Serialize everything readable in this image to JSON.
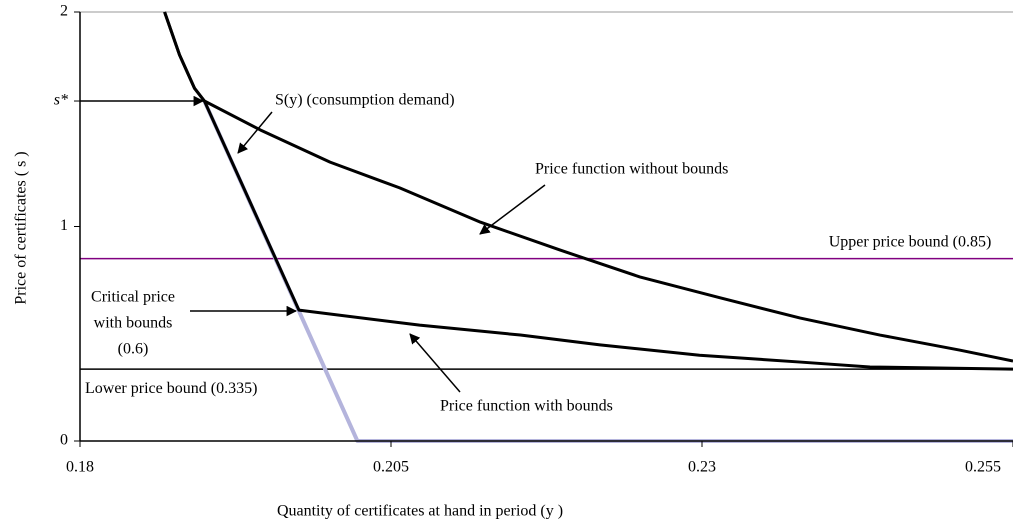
{
  "chart_data": {
    "type": "line",
    "xlabel": "Quantity of certificates at hand in period (y )",
    "ylabel": "Price of certificates ( s )",
    "xlim": [
      0.18,
      0.255
    ],
    "xticks": [
      0.18,
      0.205,
      0.23,
      0.255
    ],
    "ylim": [
      0,
      2
    ],
    "yticks": [
      0,
      1,
      2,
      {
        "value": 1.585,
        "label": "s*"
      }
    ],
    "series": [
      {
        "name": "S(y) (consumption demand)",
        "color": "#b4b4dc",
        "x": [
          0.19,
          0.2023,
          0.255
        ],
        "values": [
          1.585,
          0,
          0
        ]
      },
      {
        "name": "Price function without bounds",
        "color": "#000000",
        "x": [
          0.1868,
          0.188,
          0.1892,
          0.19,
          0.1945,
          0.2001,
          0.2057,
          0.2122,
          0.2186,
          0.225,
          0.2315,
          0.2379,
          0.2443,
          0.2507,
          0.255
        ],
        "values": [
          2.0,
          1.8,
          1.645,
          1.585,
          1.45,
          1.3,
          1.18,
          1.02,
          0.89,
          0.765,
          0.667,
          0.573,
          0.494,
          0.424,
          0.373
        ]
      },
      {
        "name": "Price function with bounds",
        "color": "#000000",
        "x": [
          0.1868,
          0.188,
          0.1892,
          0.19,
          0.1976,
          0.2073,
          0.2154,
          0.2218,
          0.2298,
          0.2379,
          0.2435,
          0.255
        ],
        "values": [
          2.0,
          1.8,
          1.645,
          1.585,
          0.61,
          0.54,
          0.494,
          0.448,
          0.4,
          0.368,
          0.345,
          0.335
        ]
      }
    ],
    "hlines": [
      {
        "value": 0.85,
        "label": "Upper price bound (0.85)",
        "color": "#800080"
      },
      {
        "value": 0.335,
        "label": "Lower price bound (0.335)",
        "color": "#000000"
      }
    ],
    "annotations": [
      "Critical price",
      "with bounds",
      "(0.6)"
    ]
  }
}
